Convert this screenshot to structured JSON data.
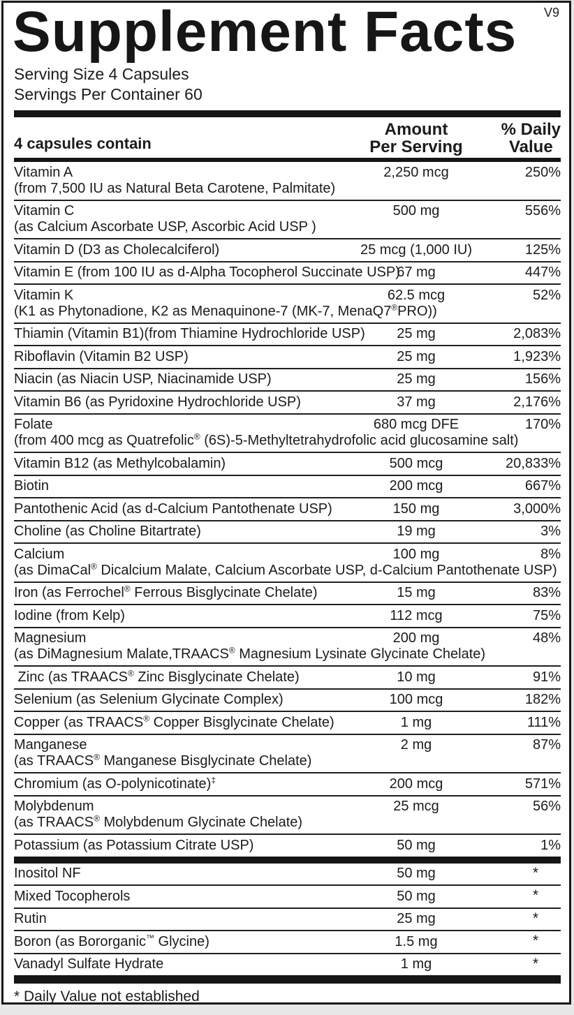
{
  "version": "V9",
  "title": "Supplement Facts",
  "serving": {
    "size": "Serving Size 4 Capsules",
    "per_container": "Servings Per Container 60"
  },
  "header": {
    "contains": "4 capsules contain",
    "amount_line1": "Amount",
    "amount_line2": "Per Serving",
    "dv_line1": "% Daily",
    "dv_line2": "Value"
  },
  "main_rows": [
    {
      "name": "Vitamin A",
      "detail": "(from 7,500 IU as Natural Beta Carotene, Palmitate)",
      "amount": "2,250 mcg",
      "dv": "250%"
    },
    {
      "name": "Vitamin C",
      "detail": "(as Calcium Ascorbate USP, Ascorbic Acid USP )",
      "amount": "500 mg",
      "dv": "556%"
    },
    {
      "name": "Vitamin D (D3 as Cholecalciferol)",
      "amount": "25 mcg (1,000 IU)",
      "dv": "125%"
    },
    {
      "name": "Vitamin E (from 100 IU as d-Alpha Tocopherol Succinate USP)",
      "amount": "67 mg",
      "dv": "447%"
    },
    {
      "name": "Vitamin K",
      "detail": "(K1 as Phytonadione, K2 as Menaquinone-7 (MK-7, MenaQ7®PRO))",
      "amount": "62.5 mcg",
      "dv": "52%"
    },
    {
      "name": "Thiamin (Vitamin B1)(from Thiamine Hydrochloride USP)",
      "amount": "25 mg",
      "dv": "2,083%"
    },
    {
      "name": "Riboflavin (Vitamin B2 USP)",
      "amount": "25 mg",
      "dv": "1,923%"
    },
    {
      "name": "Niacin (as Niacin USP, Niacinamide USP)",
      "amount": "25 mg",
      "dv": "156%"
    },
    {
      "name": "Vitamin B6 (as Pyridoxine Hydrochloride USP)",
      "amount": "37 mg",
      "dv": "2,176%"
    },
    {
      "name": "Folate",
      "detail": "(from 400 mcg as Quatrefolic® (6S)-5-Methyltetrahydrofolic acid glucosamine salt)",
      "amount": "680 mcg DFE",
      "dv": "170%"
    },
    {
      "name": "Vitamin B12 (as Methylcobalamin)",
      "amount": "500 mcg",
      "dv": "20,833%"
    },
    {
      "name": "Biotin",
      "amount": "200 mcg",
      "dv": "667%"
    },
    {
      "name": "Pantothenic Acid (as d-Calcium Pantothenate USP)",
      "amount": "150 mg",
      "dv": "3,000%"
    },
    {
      "name": "Choline (as Choline Bitartrate)",
      "amount": "19 mg",
      "dv": "3%"
    },
    {
      "name": "Calcium",
      "detail": "(as DimaCal® Dicalcium Malate, Calcium Ascorbate USP, d-Calcium Pantothenate USP)",
      "amount": "100 mg",
      "dv": "8%"
    },
    {
      "name": "Iron (as Ferrochel® Ferrous Bisglycinate Chelate)",
      "amount": "15 mg",
      "dv": "83%"
    },
    {
      "name": "Iodine (from Kelp)",
      "amount": "112 mcg",
      "dv": "75%"
    },
    {
      "name": "Magnesium",
      "detail": "(as DiMagnesium Malate,TRAACS® Magnesium Lysinate Glycinate Chelate)",
      "amount": "200 mg",
      "dv": "48%"
    },
    {
      "name": " Zinc (as TRAACS® Zinc Bisglycinate Chelate)",
      "amount": "10 mg",
      "dv": "91%"
    },
    {
      "name": "Selenium (as Selenium Glycinate Complex)",
      "amount": "100 mcg",
      "dv": "182%"
    },
    {
      "name": "Copper (as TRAACS® Copper Bisglycinate Chelate)",
      "amount": "1 mg",
      "dv": "111%"
    },
    {
      "name": "Manganese",
      "detail": "(as TRAACS® Manganese Bisglycinate Chelate)",
      "amount": "2 mg",
      "dv": "87%"
    },
    {
      "name": "Chromium (as O-polynicotinate)‡",
      "amount": "200 mcg",
      "dv": "571%"
    },
    {
      "name": "Molybdenum",
      "detail": "(as TRAACS® Molybdenum Glycinate Chelate)",
      "amount": "25 mcg",
      "dv": "56%"
    },
    {
      "name": "Potassium (as Potassium Citrate USP)",
      "amount": "50 mg",
      "dv": "1%"
    }
  ],
  "other_rows": [
    {
      "name": "Inositol NF",
      "amount": "50 mg",
      "dv": "*"
    },
    {
      "name": "Mixed Tocopherols",
      "amount": "50 mg",
      "dv": "*"
    },
    {
      "name": "Rutin",
      "amount": "25 mg",
      "dv": "*"
    },
    {
      "name": "Boron (as Bororganic™ Glycine)",
      "amount": "1.5 mg",
      "dv": "*"
    },
    {
      "name": "Vanadyl Sulfate Hydrate",
      "amount": "1 mg",
      "dv": "*"
    }
  ],
  "footnote": "* Daily Value not established"
}
